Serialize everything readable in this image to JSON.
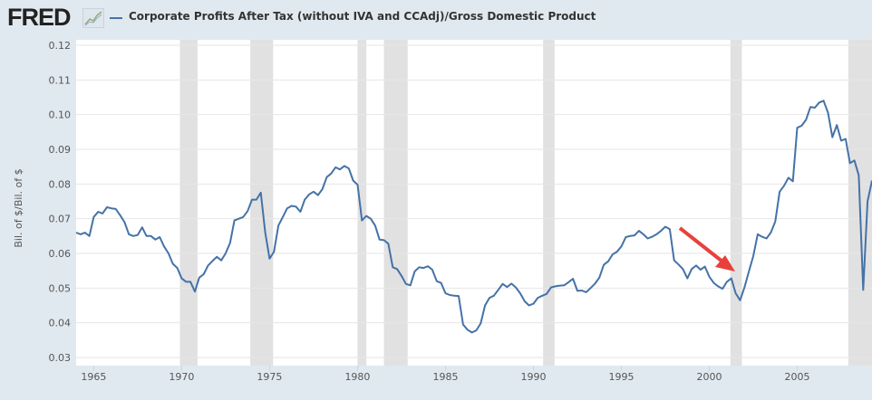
{
  "header": {
    "logo": "FRED",
    "logo_icon": "line-chart-icon"
  },
  "colors": {
    "line": "#4572a7",
    "recession": "#e1e1e1",
    "arrow": "#e8413c",
    "grid": "#e6e6e6"
  },
  "chart_data": {
    "type": "line",
    "title": "Corporate Profits After Tax (without IVA and CCAdj)/Gross Domestic Product",
    "xlabel": "",
    "ylabel": "Bil. of $/Bil. of $",
    "xlim": [
      1964.0,
      2009.25
    ],
    "ylim": [
      0.03,
      0.12
    ],
    "yticks": [
      "0.03",
      "0.04",
      "0.05",
      "0.06",
      "0.07",
      "0.08",
      "0.09",
      "0.10",
      "0.11",
      "0.12"
    ],
    "xticks": [
      "1965",
      "1970",
      "1975",
      "1980",
      "1985",
      "1990",
      "1995",
      "2000",
      "2005"
    ],
    "recessions": [
      [
        1969.9,
        1970.9
      ],
      [
        1973.9,
        1975.2
      ],
      [
        1980.0,
        1980.5
      ],
      [
        1981.5,
        1982.85
      ],
      [
        1990.55,
        1991.2
      ],
      [
        2001.2,
        2001.85
      ],
      [
        2007.9,
        2009.5
      ]
    ],
    "annotation": "red arrow pointing at 2001 trough",
    "series": [
      {
        "name": "Corporate Profits After Tax (without IVA and CCAdj)/Gross Domestic Product",
        "start": 1964.0,
        "step": 0.25,
        "values": [
          0.066,
          0.0655,
          0.066,
          0.065,
          0.0705,
          0.072,
          0.0715,
          0.0733,
          0.073,
          0.0728,
          0.071,
          0.069,
          0.0655,
          0.065,
          0.0653,
          0.0675,
          0.065,
          0.065,
          0.064,
          0.0647,
          0.062,
          0.06,
          0.057,
          0.0558,
          0.0528,
          0.0518,
          0.0518,
          0.049,
          0.053,
          0.054,
          0.0565,
          0.0578,
          0.059,
          0.058,
          0.06,
          0.063,
          0.0695,
          0.07,
          0.0705,
          0.0722,
          0.0755,
          0.0755,
          0.0775,
          0.066,
          0.0585,
          0.0605,
          0.068,
          0.0705,
          0.073,
          0.0737,
          0.0735,
          0.072,
          0.0755,
          0.077,
          0.0778,
          0.0768,
          0.0785,
          0.082,
          0.083,
          0.0848,
          0.0842,
          0.0852,
          0.0845,
          0.081,
          0.0798,
          0.0695,
          0.0708,
          0.07,
          0.068,
          0.064,
          0.0638,
          0.0628,
          0.056,
          0.0555,
          0.0535,
          0.0512,
          0.0508,
          0.0548,
          0.056,
          0.0558,
          0.0563,
          0.0553,
          0.052,
          0.0515,
          0.0485,
          0.048,
          0.0478,
          0.0477,
          0.0395,
          0.038,
          0.0372,
          0.0378,
          0.0398,
          0.045,
          0.0472,
          0.0478,
          0.0495,
          0.0512,
          0.0503,
          0.0513,
          0.0502,
          0.0485,
          0.0462,
          0.045,
          0.0455,
          0.0472,
          0.0478,
          0.0483,
          0.0502,
          0.0505,
          0.0507,
          0.0508,
          0.0517,
          0.0527,
          0.0492,
          0.0493,
          0.0488,
          0.05,
          0.0513,
          0.053,
          0.0567,
          0.0577,
          0.0597,
          0.0605,
          0.062,
          0.0647,
          0.065,
          0.0652,
          0.0665,
          0.0655,
          0.0643,
          0.0648,
          0.0655,
          0.0665,
          0.0677,
          0.067,
          0.058,
          0.0568,
          0.0555,
          0.0528,
          0.0555,
          0.0565,
          0.0553,
          0.0562,
          0.0533,
          0.0515,
          0.0505,
          0.0498,
          0.0518,
          0.0528,
          0.0485,
          0.0465,
          0.0502,
          0.0548,
          0.0592,
          0.0655,
          0.0648,
          0.0643,
          0.066,
          0.0692,
          0.0778,
          0.0795,
          0.0818,
          0.0808,
          0.0962,
          0.0968,
          0.0985,
          0.1022,
          0.102,
          0.1035,
          0.104,
          0.1005,
          0.0935,
          0.097,
          0.0925,
          0.093,
          0.086,
          0.0868,
          0.0825,
          0.0495,
          0.075,
          0.081
        ]
      }
    ]
  }
}
